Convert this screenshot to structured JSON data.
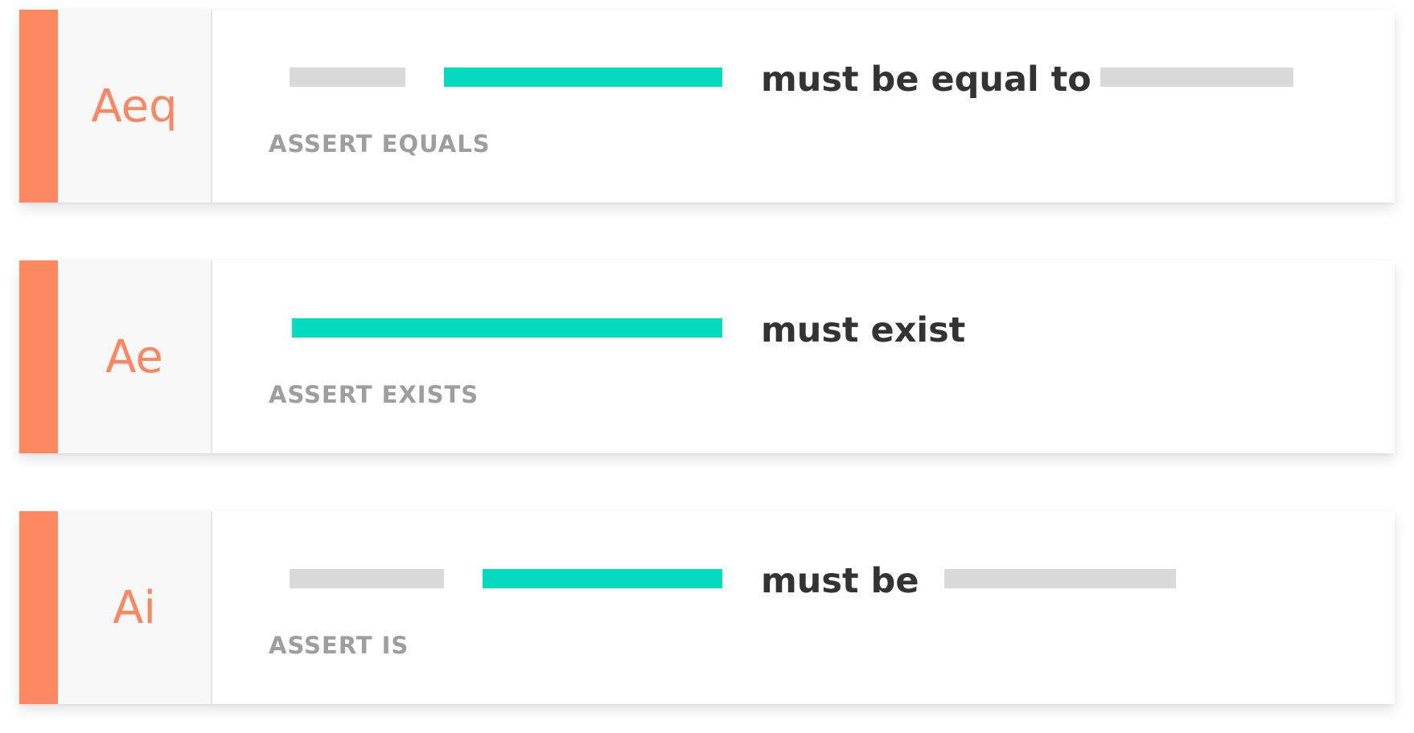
{
  "assertions": [
    {
      "abbr": "Aeq",
      "phrase": "must be equal to",
      "label": "ASSERT EQUALS",
      "slots": [
        "value",
        "target",
        "phrase",
        "value"
      ]
    },
    {
      "abbr": "Ae",
      "phrase": "must exist",
      "label": "ASSERT EXISTS",
      "slots": [
        "target",
        "phrase"
      ]
    },
    {
      "abbr": "Ai",
      "phrase": "must be",
      "label": "ASSERT IS",
      "slots": [
        "value",
        "target",
        "phrase",
        "value"
      ]
    }
  ],
  "colors": {
    "accent": "#fd8760",
    "target_field": "#05dcbf",
    "placeholder": "#dadada",
    "phrase_text": "#333333",
    "label_text": "#9e9e9e"
  }
}
